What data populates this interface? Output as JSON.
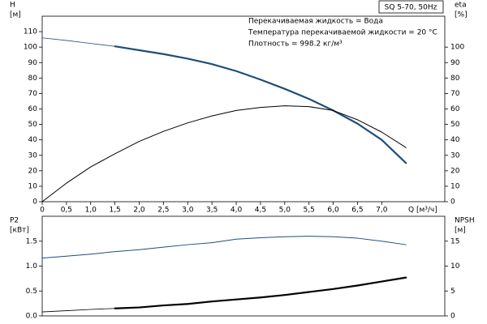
{
  "chart_data": [
    {
      "type": "line",
      "title": "SQ 5-70, 50Hz",
      "annotations": [
        "Перекачиваемая жидкость = Вода",
        "Температура перекачиваемой жидкости = 20 °C",
        "Плотность = 998.2 кг/м³"
      ],
      "ylabel": "H",
      "yunit": "[м]",
      "y2label": "eta",
      "y2unit": "[%]",
      "xlabel": "Q [м³/ч]",
      "xlim": [
        0,
        8.3
      ],
      "xticks": [
        0,
        {
          "value": 0.5,
          "label": "0,5"
        },
        {
          "value": 1,
          "label": "1,0"
        },
        {
          "value": 1.5,
          "label": "1,5"
        },
        {
          "value": 2,
          "label": "2,0"
        },
        {
          "value": 2.5,
          "label": "2,5"
        },
        {
          "value": 3,
          "label": "3,0"
        },
        {
          "value": 3.5,
          "label": "3,5"
        },
        {
          "value": 4,
          "label": "4,0"
        },
        {
          "value": 4.5,
          "label": "4,5"
        },
        {
          "value": 5,
          "label": "5,0"
        },
        {
          "value": 5.5,
          "label": "5,5"
        },
        {
          "value": 6,
          "label": "6,0"
        },
        {
          "value": 6.5,
          "label": "6,5"
        },
        {
          "value": 7,
          "label": "7,0"
        }
      ],
      "ylim": [
        0,
        120
      ],
      "yticks": [
        0,
        10,
        20,
        30,
        40,
        50,
        60,
        70,
        80,
        90,
        100,
        110
      ],
      "y2lim": [
        0,
        120
      ],
      "y2ticks": [
        0,
        10,
        20,
        30,
        40,
        50,
        60,
        70,
        80,
        90,
        100
      ],
      "series": [
        {
          "color": "#1f4e79",
          "line_width": 0.8,
          "x": [
            0,
            0.5,
            1,
            1.5
          ],
          "values": [
            106,
            104.3,
            102.4,
            100.5
          ]
        },
        {
          "color": "#1f4e79",
          "line_width": 2.2,
          "x": [
            1.5,
            2,
            2.5,
            3,
            3.5,
            4,
            4.5,
            5,
            5.5,
            6,
            6.5,
            7,
            7.5
          ],
          "values": [
            100.5,
            98,
            95.5,
            92.5,
            89,
            84.5,
            79,
            73,
            66.5,
            59,
            50.5,
            40,
            25
          ]
        },
        {
          "color": "#000000",
          "line_width": 1,
          "axis": "y2",
          "x": [
            0,
            0.5,
            1,
            1.5,
            2,
            2.5,
            3,
            3.5,
            4,
            4.5,
            5,
            5.5,
            6,
            6.5,
            7,
            7.5
          ],
          "values": [
            0,
            12,
            22.5,
            31,
            39,
            45.5,
            51,
            55.5,
            59,
            61,
            62,
            61.5,
            59,
            53,
            45,
            35
          ]
        }
      ]
    },
    {
      "type": "line",
      "ylabel": "P2",
      "yunit": "[кВт]",
      "y2label": "NPSH",
      "y2unit": "[м]",
      "xlim": [
        0,
        8.3
      ],
      "ylim": [
        0,
        2
      ],
      "yticks": [
        {
          "value": 0,
          "label": "0.0"
        },
        {
          "value": 0.5,
          "label": "0.5"
        },
        {
          "value": 1,
          "label": "1.0"
        },
        {
          "value": 1.5,
          "label": "1.5"
        }
      ],
      "y2lim": [
        0,
        20
      ],
      "y2ticks": [
        0,
        5,
        10,
        15
      ],
      "series": [
        {
          "color": "#1f4e79",
          "line_width": 1,
          "x": [
            0,
            0.5,
            1,
            1.5,
            2,
            2.5,
            3,
            3.5,
            4,
            4.5,
            5,
            5.5,
            6,
            6.5,
            7,
            7.5
          ],
          "values": [
            1.16,
            1.2,
            1.24,
            1.29,
            1.33,
            1.38,
            1.43,
            1.47,
            1.54,
            1.57,
            1.59,
            1.6,
            1.59,
            1.56,
            1.5,
            1.43
          ]
        },
        {
          "color": "#000000",
          "line_width": 0.8,
          "axis": "y2",
          "x": [
            0,
            0.5,
            1,
            1.5
          ],
          "values": [
            0.8,
            1.05,
            1.3,
            1.5
          ]
        },
        {
          "color": "#000000",
          "line_width": 2.2,
          "axis": "y2",
          "x": [
            1.5,
            2,
            2.5,
            3,
            3.5,
            4,
            4.5,
            5,
            5.5,
            6,
            6.5,
            7,
            7.5
          ],
          "values": [
            1.5,
            1.7,
            2.1,
            2.4,
            2.9,
            3.3,
            3.7,
            4.2,
            4.8,
            5.4,
            6.1,
            6.9,
            7.7
          ]
        }
      ]
    }
  ]
}
